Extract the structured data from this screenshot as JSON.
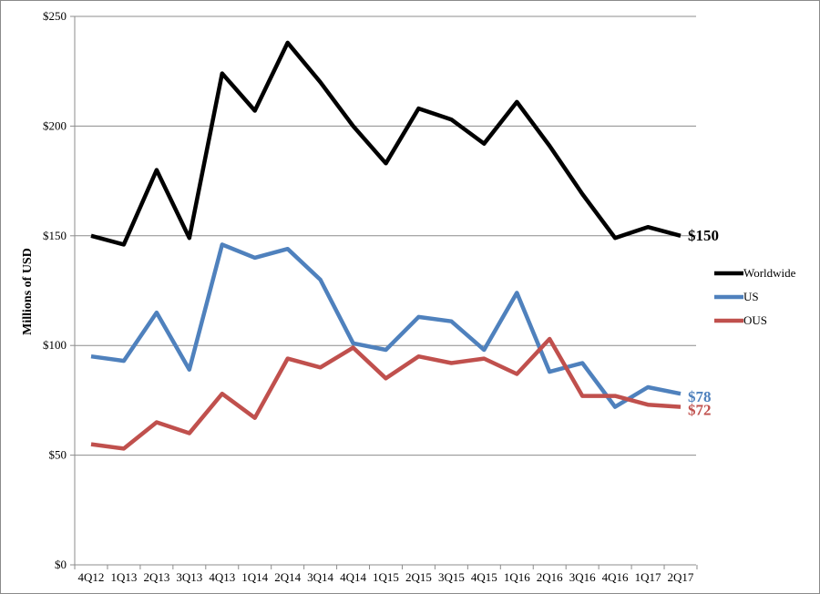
{
  "chart_data": {
    "type": "line",
    "title": "",
    "xlabel": "",
    "ylabel": "Millions of USD",
    "ylim": [
      0,
      250
    ],
    "y_ticks": [
      0,
      50,
      100,
      150,
      200,
      250
    ],
    "y_tick_labels": [
      "$0",
      "$50",
      "$100",
      "$150",
      "$200",
      "$250"
    ],
    "grid": true,
    "legend_position": "right",
    "categories": [
      "4Q12",
      "1Q13",
      "2Q13",
      "3Q13",
      "4Q13",
      "1Q14",
      "2Q14",
      "3Q14",
      "4Q14",
      "1Q15",
      "2Q15",
      "3Q15",
      "4Q15",
      "1Q16",
      "2Q16",
      "3Q16",
      "4Q16",
      "1Q17",
      "2Q17"
    ],
    "series": [
      {
        "name": "Worldwide",
        "color": "#000000",
        "values": [
          150,
          146,
          180,
          149,
          224,
          207,
          238,
          220,
          200,
          183,
          208,
          203,
          192,
          211,
          191,
          169,
          149,
          154,
          150
        ],
        "end_label": "$150"
      },
      {
        "name": "US",
        "color": "#4f81bd",
        "values": [
          95,
          93,
          115,
          89,
          146,
          140,
          144,
          130,
          101,
          98,
          113,
          111,
          98,
          124,
          88,
          92,
          72,
          81,
          78
        ],
        "end_label": "$78"
      },
      {
        "name": "OUS",
        "color": "#c0504d",
        "values": [
          55,
          53,
          65,
          60,
          78,
          67,
          94,
          90,
          99,
          85,
          95,
          92,
          94,
          87,
          103,
          77,
          77,
          73,
          72
        ],
        "end_label": "$72"
      }
    ]
  }
}
